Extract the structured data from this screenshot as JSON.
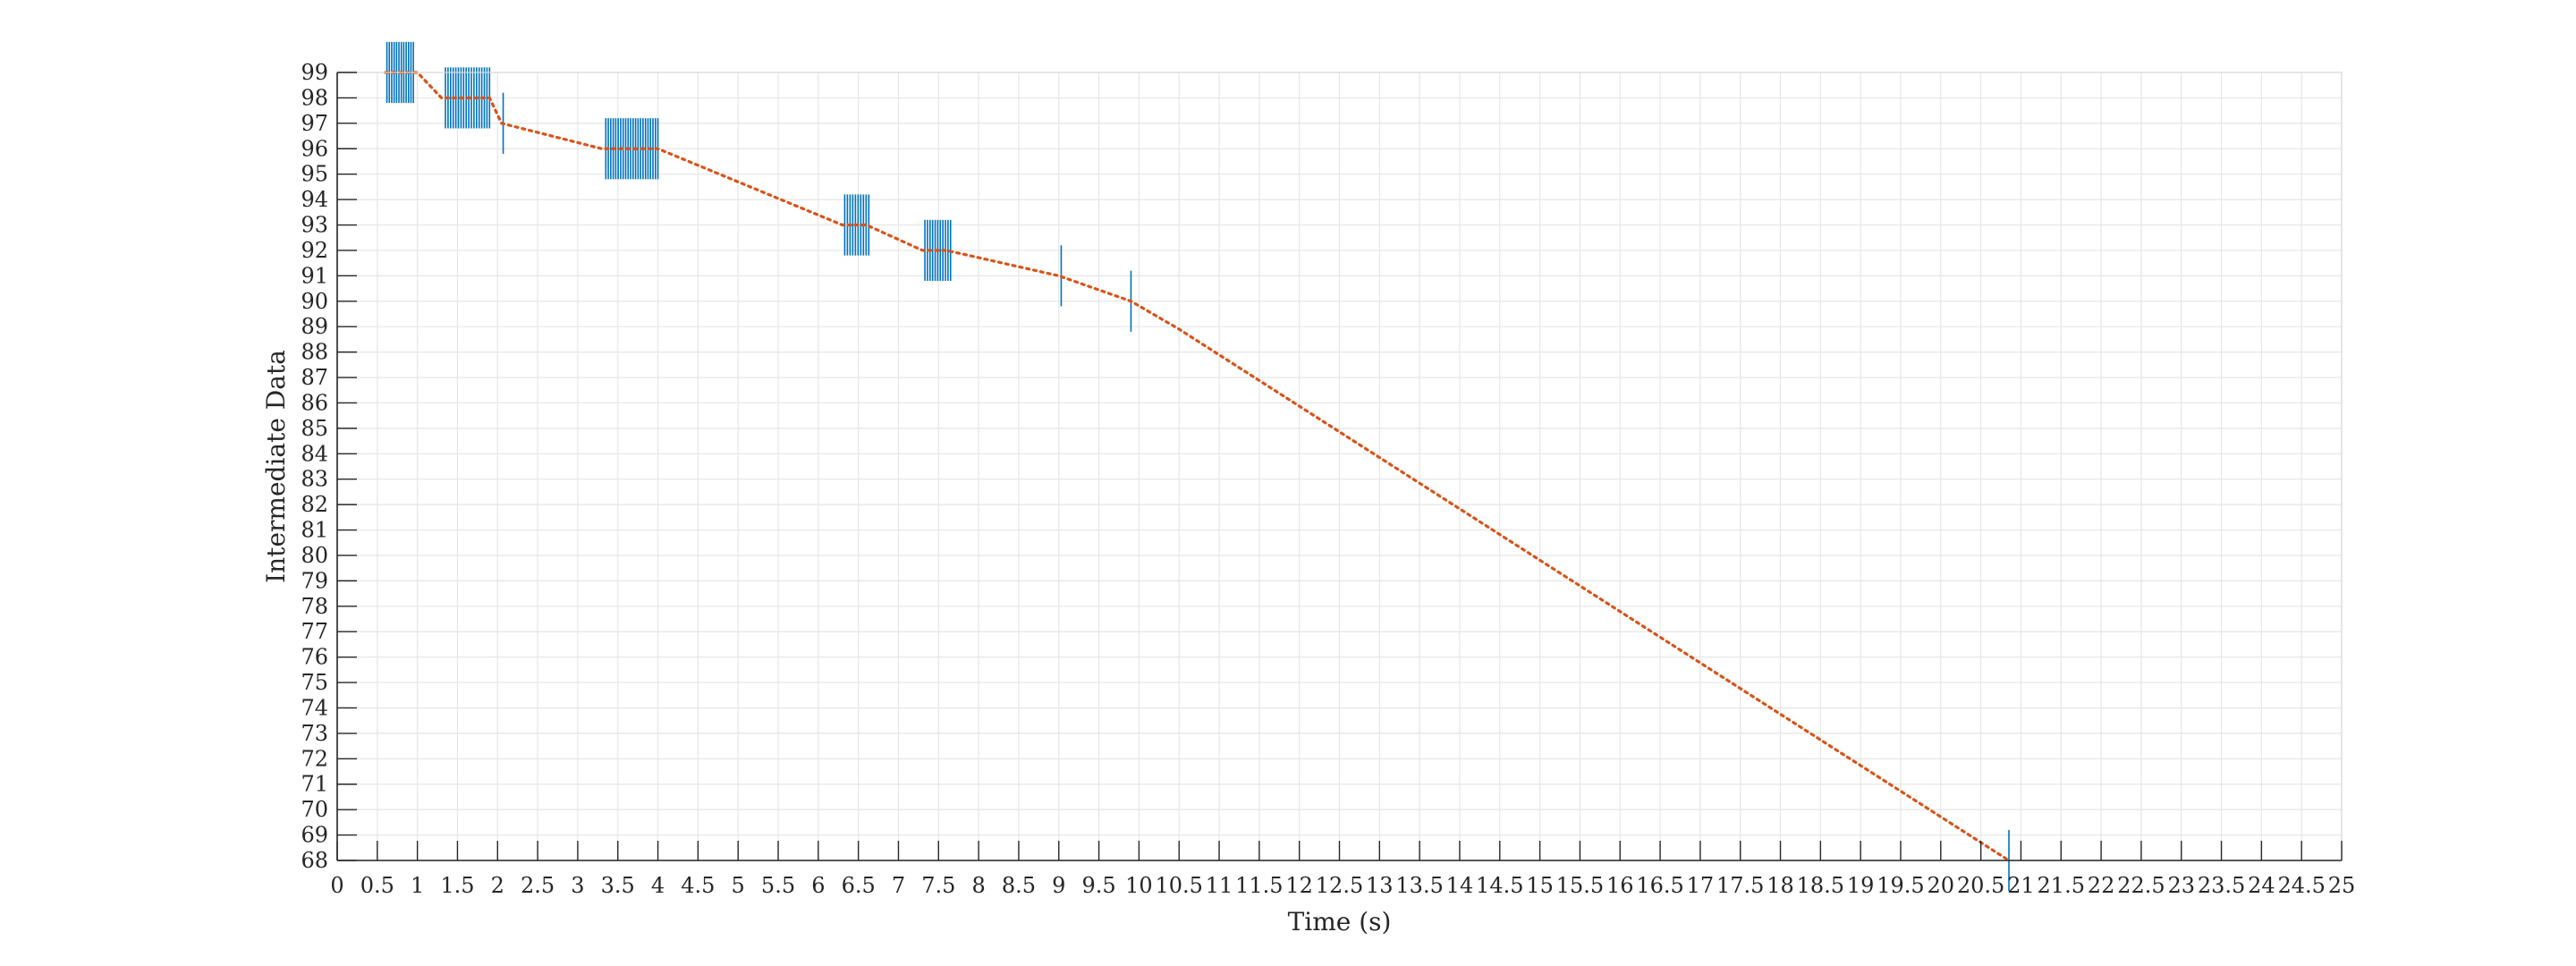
{
  "chart_data": {
    "type": "scatter",
    "title": "",
    "xlabel": "Time (s)",
    "ylabel": "Intermediate Data",
    "xlim": [
      0,
      25
    ],
    "ylim": [
      68,
      99
    ],
    "x_ticks": [
      0,
      0.5,
      1,
      1.5,
      2,
      2.5,
      3,
      3.5,
      4,
      4.5,
      5,
      5.5,
      6,
      6.5,
      7,
      7.5,
      8,
      8.5,
      9,
      9.5,
      10,
      10.5,
      11,
      11.5,
      12,
      12.5,
      13,
      13.5,
      14,
      14.5,
      15,
      15.5,
      16,
      16.5,
      17,
      17.5,
      18,
      18.5,
      19,
      19.5,
      20,
      20.5,
      21,
      21.5,
      22,
      22.5,
      23,
      23.5,
      24,
      24.5,
      25
    ],
    "y_ticks": [
      68,
      69,
      70,
      71,
      72,
      73,
      74,
      75,
      76,
      77,
      78,
      79,
      80,
      81,
      82,
      83,
      84,
      85,
      86,
      87,
      88,
      89,
      90,
      91,
      92,
      93,
      94,
      95,
      96,
      97,
      98,
      99
    ],
    "grid": true,
    "colors": {
      "trace": "#D95319",
      "events": "#0072BD",
      "grid": "#e6e6e6",
      "axis": "#262626"
    },
    "series": [
      {
        "marker": "dotted-line",
        "color": "#D95319",
        "points": [
          [
            0.6,
            99
          ],
          [
            1.0,
            99
          ],
          [
            1.3,
            98
          ],
          [
            1.9,
            98
          ],
          [
            2.05,
            97
          ],
          [
            3.3,
            96
          ],
          [
            4.0,
            96
          ],
          [
            6.3,
            93
          ],
          [
            6.6,
            93
          ],
          [
            7.3,
            92
          ],
          [
            7.6,
            92
          ],
          [
            9.0,
            91
          ],
          [
            9.9,
            90
          ],
          [
            10.5,
            88.9
          ],
          [
            20.85,
            68
          ]
        ]
      },
      {
        "marker": "vertical-tick",
        "color": "#0072BD",
        "clusters": [
          {
            "x_start": 0.62,
            "x_end": 0.95,
            "count": 12,
            "y_low": 97.8,
            "y_high": 100.2
          },
          {
            "x_start": 1.35,
            "x_end": 1.9,
            "count": 18,
            "y_low": 96.8,
            "y_high": 99.2
          },
          {
            "x_start": 2.07,
            "x_end": 2.07,
            "count": 1,
            "y_low": 95.8,
            "y_high": 98.2
          },
          {
            "x_start": 3.35,
            "x_end": 4.0,
            "count": 22,
            "y_low": 94.8,
            "y_high": 97.2
          },
          {
            "x_start": 6.33,
            "x_end": 6.63,
            "count": 10,
            "y_low": 91.8,
            "y_high": 94.2
          },
          {
            "x_start": 7.33,
            "x_end": 7.65,
            "count": 11,
            "y_low": 90.8,
            "y_high": 93.2
          },
          {
            "x_start": 9.03,
            "x_end": 9.03,
            "count": 1,
            "y_low": 89.8,
            "y_high": 92.2
          },
          {
            "x_start": 9.9,
            "x_end": 9.9,
            "count": 1,
            "y_low": 88.8,
            "y_high": 91.2
          },
          {
            "x_start": 20.85,
            "x_end": 20.85,
            "count": 1,
            "y_low": 66.8,
            "y_high": 69.2
          }
        ]
      }
    ]
  }
}
